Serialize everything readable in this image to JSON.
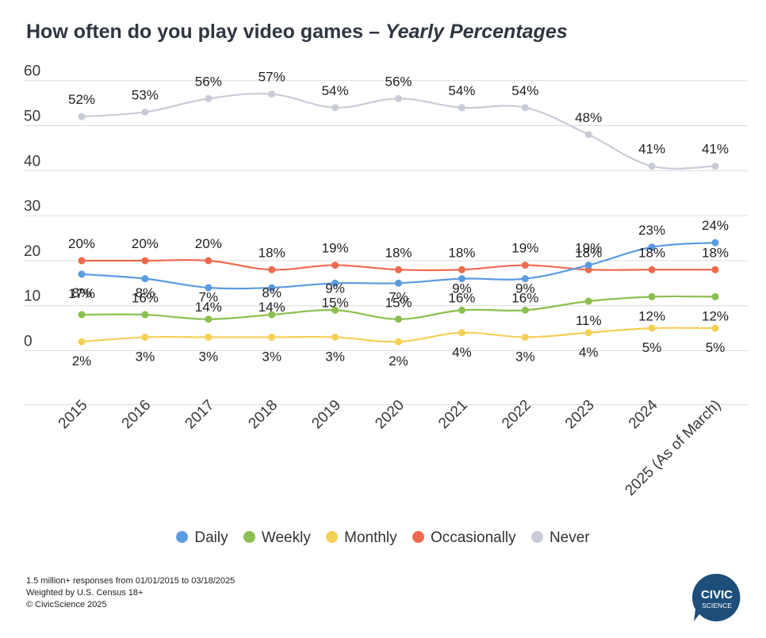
{
  "title": {
    "main": "How often do you play video games – ",
    "italic": "Yearly Percentages"
  },
  "colors": {
    "Daily": "#5b9be0",
    "Weekly": "#8bbf4f",
    "Monthly": "#f5cf56",
    "Occasionally": "#ee6a4f",
    "Never": "#c9ccd6",
    "brand": "#1e4f7a"
  },
  "chart_data": {
    "type": "line",
    "title": "How often do you play video games – Yearly Percentages",
    "xlabel": "",
    "ylabel": "",
    "ylim": [
      -12,
      60
    ],
    "yticks": [
      0,
      10,
      20,
      30,
      40,
      50,
      60
    ],
    "grid": true,
    "legend": "bottom",
    "categories": [
      "2015",
      "2016",
      "2017",
      "2018",
      "2019",
      "2020",
      "2021",
      "2022",
      "2023",
      "2024",
      "2025 (As of March)"
    ],
    "series": [
      {
        "name": "Daily",
        "values": [
          17,
          16,
          14,
          14,
          15,
          15,
          16,
          16,
          19,
          23,
          24
        ],
        "labels": [
          "17%",
          "16%",
          "14%",
          "14%",
          "15%",
          "15%",
          "16%",
          "16%",
          "19%",
          "23%",
          "24%"
        ]
      },
      {
        "name": "Weekly",
        "values": [
          8,
          8,
          7,
          8,
          9,
          7,
          9,
          9,
          11,
          12,
          12
        ],
        "labels": [
          "8%",
          "8%",
          "7%",
          "8%",
          "9%",
          "7%",
          "9%",
          "9%",
          "11%",
          "12%",
          "12%"
        ]
      },
      {
        "name": "Monthly",
        "values": [
          2,
          3,
          3,
          3,
          3,
          2,
          4,
          3,
          4,
          5,
          5
        ],
        "labels": [
          "2%",
          "3%",
          "3%",
          "3%",
          "3%",
          "2%",
          "4%",
          "3%",
          "4%",
          "5%",
          "5%"
        ]
      },
      {
        "name": "Occasionally",
        "values": [
          20,
          20,
          20,
          18,
          19,
          18,
          18,
          19,
          18,
          18,
          18
        ],
        "labels": [
          "20%",
          "20%",
          "20%",
          "18%",
          "19%",
          "18%",
          "18%",
          "19%",
          "18%",
          "18%",
          "18%"
        ]
      },
      {
        "name": "Never",
        "values": [
          52,
          53,
          56,
          57,
          54,
          56,
          54,
          54,
          48,
          41,
          41
        ],
        "labels": [
          "52%",
          "53%",
          "56%",
          "57%",
          "54%",
          "56%",
          "54%",
          "54%",
          "48%",
          "41%",
          "41%"
        ]
      }
    ]
  },
  "footer": {
    "line1": "1.5 million+ responses from 01/01/2015 to 03/18/2025",
    "line2": "Weighted by U.S. Census 18+",
    "line3": "© CivicScience 2025"
  },
  "logo": {
    "line1": "CIVIC",
    "line2": "SCIENCE"
  }
}
